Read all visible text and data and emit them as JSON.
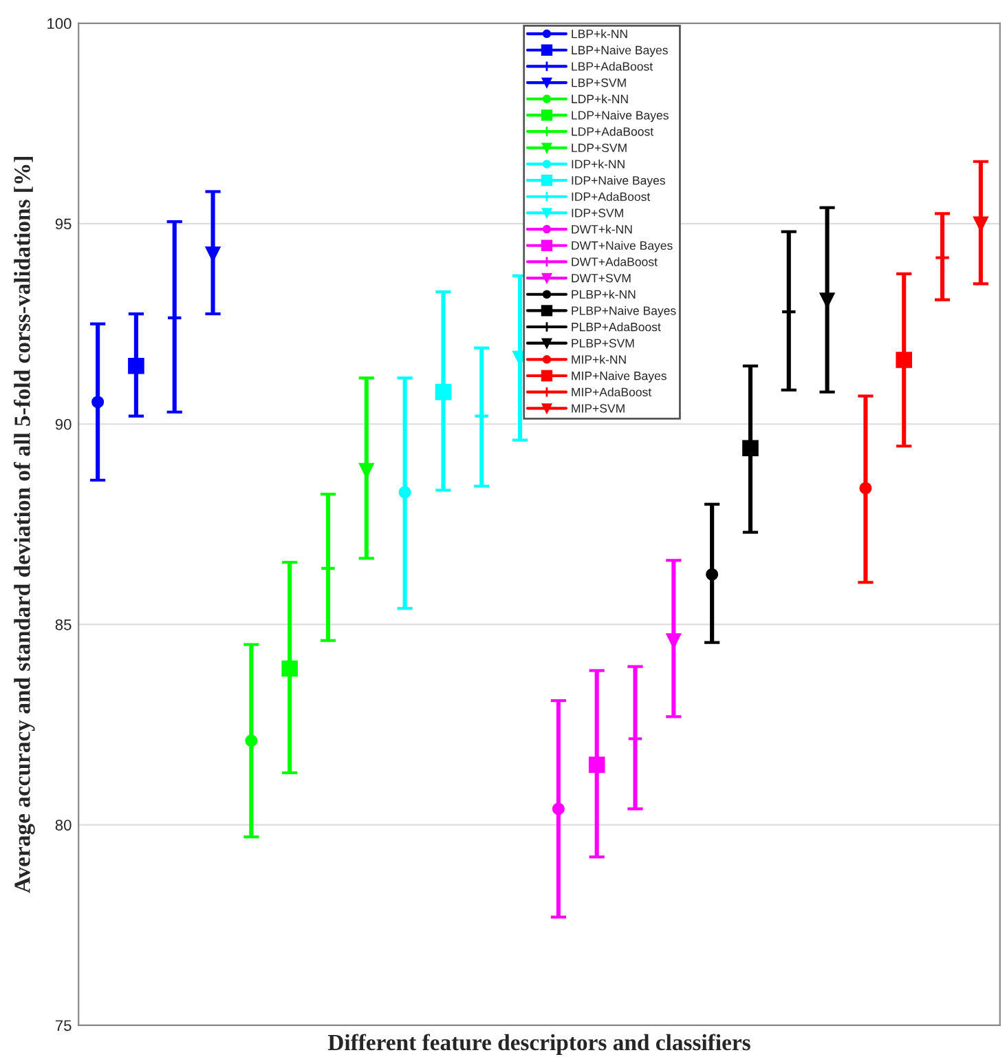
{
  "chart_data": {
    "type": "scatter",
    "xlabel": "Different feature descriptors and classifiers",
    "ylabel": "Average accuracy and standard deviation of all 5-fold corss-validations [%]",
    "categories": [
      null,
      null,
      null,
      null,
      null,
      null,
      null,
      null,
      null,
      null,
      null,
      null,
      null,
      null,
      null,
      null,
      null,
      null,
      null,
      null,
      null,
      null,
      null,
      null
    ],
    "ylim": [
      75,
      100
    ],
    "yticks": [
      75,
      80,
      85,
      90,
      95,
      100
    ],
    "grid": "y",
    "legend": "top",
    "series": [
      {
        "name": "LBP+k-NN",
        "color": "#0000ff",
        "marker": "circle",
        "values": [
          90.55,
          null,
          null,
          null,
          null,
          null,
          null,
          null,
          null,
          null,
          null,
          null,
          null,
          null,
          null,
          null,
          null,
          null,
          null,
          null,
          null,
          null,
          null,
          null
        ],
        "errors": [
          [
            88.6,
            92.5
          ],
          null,
          null,
          null,
          null,
          null,
          null,
          null,
          null,
          null,
          null,
          null,
          null,
          null,
          null,
          null,
          null,
          null,
          null,
          null,
          null,
          null,
          null,
          null
        ]
      },
      {
        "name": "LBP+Naive Bayes",
        "color": "#0000ff",
        "marker": "square",
        "values": [
          null,
          91.45,
          null,
          null,
          null,
          null,
          null,
          null,
          null,
          null,
          null,
          null,
          null,
          null,
          null,
          null,
          null,
          null,
          null,
          null,
          null,
          null,
          null,
          null
        ],
        "errors": [
          null,
          [
            90.2,
            92.75
          ],
          null,
          null,
          null,
          null,
          null,
          null,
          null,
          null,
          null,
          null,
          null,
          null,
          null,
          null,
          null,
          null,
          null,
          null,
          null,
          null,
          null,
          null
        ]
      },
      {
        "name": "LBP+AdaBoost",
        "color": "#0000ff",
        "marker": "cross",
        "values": [
          null,
          null,
          92.65,
          null,
          null,
          null,
          null,
          null,
          null,
          null,
          null,
          null,
          null,
          null,
          null,
          null,
          null,
          null,
          null,
          null,
          null,
          null,
          null,
          null
        ],
        "errors": [
          null,
          null,
          [
            90.3,
            95.05
          ],
          null,
          null,
          null,
          null,
          null,
          null,
          null,
          null,
          null,
          null,
          null,
          null,
          null,
          null,
          null,
          null,
          null,
          null,
          null,
          null,
          null
        ]
      },
      {
        "name": "LBP+SVM",
        "color": "#0000ff",
        "marker": "triangle",
        "values": [
          null,
          null,
          null,
          94.25,
          null,
          null,
          null,
          null,
          null,
          null,
          null,
          null,
          null,
          null,
          null,
          null,
          null,
          null,
          null,
          null,
          null,
          null,
          null,
          null
        ],
        "errors": [
          null,
          null,
          null,
          [
            92.75,
            95.8
          ],
          null,
          null,
          null,
          null,
          null,
          null,
          null,
          null,
          null,
          null,
          null,
          null,
          null,
          null,
          null,
          null,
          null,
          null,
          null,
          null
        ]
      },
      {
        "name": "LDP+k-NN",
        "color": "#00ff00",
        "marker": "circle",
        "values": [
          null,
          null,
          null,
          null,
          82.1,
          null,
          null,
          null,
          null,
          null,
          null,
          null,
          null,
          null,
          null,
          null,
          null,
          null,
          null,
          null,
          null,
          null,
          null,
          null
        ],
        "errors": [
          null,
          null,
          null,
          null,
          [
            79.7,
            84.5
          ],
          null,
          null,
          null,
          null,
          null,
          null,
          null,
          null,
          null,
          null,
          null,
          null,
          null,
          null,
          null,
          null,
          null,
          null,
          null
        ]
      },
      {
        "name": "LDP+Naive Bayes",
        "color": "#00ff00",
        "marker": "square",
        "values": [
          null,
          null,
          null,
          null,
          null,
          83.9,
          null,
          null,
          null,
          null,
          null,
          null,
          null,
          null,
          null,
          null,
          null,
          null,
          null,
          null,
          null,
          null,
          null,
          null
        ],
        "errors": [
          null,
          null,
          null,
          null,
          null,
          [
            81.3,
            86.55
          ],
          null,
          null,
          null,
          null,
          null,
          null,
          null,
          null,
          null,
          null,
          null,
          null,
          null,
          null,
          null,
          null,
          null,
          null
        ]
      },
      {
        "name": "LDP+AdaBoost",
        "color": "#00ff00",
        "marker": "cross",
        "values": [
          null,
          null,
          null,
          null,
          null,
          null,
          86.4,
          null,
          null,
          null,
          null,
          null,
          null,
          null,
          null,
          null,
          null,
          null,
          null,
          null,
          null,
          null,
          null,
          null
        ],
        "errors": [
          null,
          null,
          null,
          null,
          null,
          null,
          [
            84.6,
            88.25
          ],
          null,
          null,
          null,
          null,
          null,
          null,
          null,
          null,
          null,
          null,
          null,
          null,
          null,
          null,
          null,
          null,
          null
        ]
      },
      {
        "name": "LDP+SVM",
        "color": "#00ff00",
        "marker": "triangle",
        "values": [
          null,
          null,
          null,
          null,
          null,
          null,
          null,
          88.85,
          null,
          null,
          null,
          null,
          null,
          null,
          null,
          null,
          null,
          null,
          null,
          null,
          null,
          null,
          null,
          null
        ],
        "errors": [
          null,
          null,
          null,
          null,
          null,
          null,
          null,
          [
            86.65,
            91.15
          ],
          null,
          null,
          null,
          null,
          null,
          null,
          null,
          null,
          null,
          null,
          null,
          null,
          null,
          null,
          null,
          null
        ]
      },
      {
        "name": "IDP+k-NN",
        "color": "#00ffff",
        "marker": "circle",
        "values": [
          null,
          null,
          null,
          null,
          null,
          null,
          null,
          null,
          88.3,
          null,
          null,
          null,
          null,
          null,
          null,
          null,
          null,
          null,
          null,
          null,
          null,
          null,
          null,
          null
        ],
        "errors": [
          null,
          null,
          null,
          null,
          null,
          null,
          null,
          null,
          [
            85.4,
            91.15
          ],
          null,
          null,
          null,
          null,
          null,
          null,
          null,
          null,
          null,
          null,
          null,
          null,
          null,
          null,
          null
        ]
      },
      {
        "name": "IDP+Naive Bayes",
        "color": "#00ffff",
        "marker": "square",
        "values": [
          null,
          null,
          null,
          null,
          null,
          null,
          null,
          null,
          null,
          90.8,
          null,
          null,
          null,
          null,
          null,
          null,
          null,
          null,
          null,
          null,
          null,
          null,
          null,
          null
        ],
        "errors": [
          null,
          null,
          null,
          null,
          null,
          null,
          null,
          null,
          null,
          [
            88.35,
            93.3
          ],
          null,
          null,
          null,
          null,
          null,
          null,
          null,
          null,
          null,
          null,
          null,
          null,
          null,
          null
        ]
      },
      {
        "name": "IDP+AdaBoost",
        "color": "#00ffff",
        "marker": "cross",
        "values": [
          null,
          null,
          null,
          null,
          null,
          null,
          null,
          null,
          null,
          null,
          90.2,
          null,
          null,
          null,
          null,
          null,
          null,
          null,
          null,
          null,
          null,
          null,
          null,
          null
        ],
        "errors": [
          null,
          null,
          null,
          null,
          null,
          null,
          null,
          null,
          null,
          null,
          [
            88.45,
            91.9
          ],
          null,
          null,
          null,
          null,
          null,
          null,
          null,
          null,
          null,
          null,
          null,
          null,
          null
        ]
      },
      {
        "name": "IDP+SVM",
        "color": "#00ffff",
        "marker": "triangle",
        "values": [
          null,
          null,
          null,
          null,
          null,
          null,
          null,
          null,
          null,
          null,
          null,
          91.65,
          null,
          null,
          null,
          null,
          null,
          null,
          null,
          null,
          null,
          null,
          null,
          null
        ],
        "errors": [
          null,
          null,
          null,
          null,
          null,
          null,
          null,
          null,
          null,
          null,
          null,
          [
            89.6,
            93.7
          ],
          null,
          null,
          null,
          null,
          null,
          null,
          null,
          null,
          null,
          null,
          null,
          null
        ]
      },
      {
        "name": "DWT+k-NN",
        "color": "#ff00ff",
        "marker": "circle",
        "values": [
          null,
          null,
          null,
          null,
          null,
          null,
          null,
          null,
          null,
          null,
          null,
          null,
          80.4,
          null,
          null,
          null,
          null,
          null,
          null,
          null,
          null,
          null,
          null,
          null
        ],
        "errors": [
          null,
          null,
          null,
          null,
          null,
          null,
          null,
          null,
          null,
          null,
          null,
          null,
          [
            77.7,
            83.1
          ],
          null,
          null,
          null,
          null,
          null,
          null,
          null,
          null,
          null,
          null,
          null
        ]
      },
      {
        "name": "DWT+Naive Bayes",
        "color": "#ff00ff",
        "marker": "square",
        "values": [
          null,
          null,
          null,
          null,
          null,
          null,
          null,
          null,
          null,
          null,
          null,
          null,
          null,
          81.5,
          null,
          null,
          null,
          null,
          null,
          null,
          null,
          null,
          null,
          null
        ],
        "errors": [
          null,
          null,
          null,
          null,
          null,
          null,
          null,
          null,
          null,
          null,
          null,
          null,
          null,
          [
            79.2,
            83.85
          ],
          null,
          null,
          null,
          null,
          null,
          null,
          null,
          null,
          null,
          null
        ]
      },
      {
        "name": "DWT+AdaBoost",
        "color": "#ff00ff",
        "marker": "cross",
        "values": [
          null,
          null,
          null,
          null,
          null,
          null,
          null,
          null,
          null,
          null,
          null,
          null,
          null,
          null,
          82.15,
          null,
          null,
          null,
          null,
          null,
          null,
          null,
          null,
          null
        ],
        "errors": [
          null,
          null,
          null,
          null,
          null,
          null,
          null,
          null,
          null,
          null,
          null,
          null,
          null,
          null,
          [
            80.4,
            83.95
          ],
          null,
          null,
          null,
          null,
          null,
          null,
          null,
          null,
          null
        ]
      },
      {
        "name": "DWT+SVM",
        "color": "#ff00ff",
        "marker": "triangle",
        "values": [
          null,
          null,
          null,
          null,
          null,
          null,
          null,
          null,
          null,
          null,
          null,
          null,
          null,
          null,
          null,
          84.6,
          null,
          null,
          null,
          null,
          null,
          null,
          null,
          null
        ],
        "errors": [
          null,
          null,
          null,
          null,
          null,
          null,
          null,
          null,
          null,
          null,
          null,
          null,
          null,
          null,
          null,
          [
            82.7,
            86.6
          ],
          null,
          null,
          null,
          null,
          null,
          null,
          null,
          null
        ]
      },
      {
        "name": "PLBP+k-NN",
        "color": "#000000",
        "marker": "circle",
        "values": [
          null,
          null,
          null,
          null,
          null,
          null,
          null,
          null,
          null,
          null,
          null,
          null,
          null,
          null,
          null,
          null,
          86.25,
          null,
          null,
          null,
          null,
          null,
          null,
          null
        ],
        "errors": [
          null,
          null,
          null,
          null,
          null,
          null,
          null,
          null,
          null,
          null,
          null,
          null,
          null,
          null,
          null,
          null,
          [
            84.55,
            88.0
          ],
          null,
          null,
          null,
          null,
          null,
          null,
          null
        ]
      },
      {
        "name": "PLBP+Naive Bayes",
        "color": "#000000",
        "marker": "square",
        "values": [
          null,
          null,
          null,
          null,
          null,
          null,
          null,
          null,
          null,
          null,
          null,
          null,
          null,
          null,
          null,
          null,
          null,
          89.4,
          null,
          null,
          null,
          null,
          null,
          null
        ],
        "errors": [
          null,
          null,
          null,
          null,
          null,
          null,
          null,
          null,
          null,
          null,
          null,
          null,
          null,
          null,
          null,
          null,
          null,
          [
            87.3,
            91.45
          ],
          null,
          null,
          null,
          null,
          null,
          null
        ]
      },
      {
        "name": "PLBP+AdaBoost",
        "color": "#000000",
        "marker": "cross",
        "values": [
          null,
          null,
          null,
          null,
          null,
          null,
          null,
          null,
          null,
          null,
          null,
          null,
          null,
          null,
          null,
          null,
          null,
          null,
          92.8,
          null,
          null,
          null,
          null,
          null
        ],
        "errors": [
          null,
          null,
          null,
          null,
          null,
          null,
          null,
          null,
          null,
          null,
          null,
          null,
          null,
          null,
          null,
          null,
          null,
          null,
          [
            90.85,
            94.8
          ],
          null,
          null,
          null,
          null,
          null
        ]
      },
      {
        "name": "PLBP+SVM",
        "color": "#000000",
        "marker": "triangle",
        "values": [
          null,
          null,
          null,
          null,
          null,
          null,
          null,
          null,
          null,
          null,
          null,
          null,
          null,
          null,
          null,
          null,
          null,
          null,
          null,
          93.1,
          null,
          null,
          null,
          null
        ],
        "errors": [
          null,
          null,
          null,
          null,
          null,
          null,
          null,
          null,
          null,
          null,
          null,
          null,
          null,
          null,
          null,
          null,
          null,
          null,
          null,
          [
            90.8,
            95.4
          ],
          null,
          null,
          null,
          null
        ]
      },
      {
        "name": "MIP+k-NN",
        "color": "#ff0000",
        "marker": "circle",
        "values": [
          null,
          null,
          null,
          null,
          null,
          null,
          null,
          null,
          null,
          null,
          null,
          null,
          null,
          null,
          null,
          null,
          null,
          null,
          null,
          null,
          88.4,
          null,
          null,
          null
        ],
        "errors": [
          null,
          null,
          null,
          null,
          null,
          null,
          null,
          null,
          null,
          null,
          null,
          null,
          null,
          null,
          null,
          null,
          null,
          null,
          null,
          null,
          [
            86.05,
            90.7
          ],
          null,
          null,
          null
        ]
      },
      {
        "name": "MIP+Naive Bayes",
        "color": "#ff0000",
        "marker": "square",
        "values": [
          null,
          null,
          null,
          null,
          null,
          null,
          null,
          null,
          null,
          null,
          null,
          null,
          null,
          null,
          null,
          null,
          null,
          null,
          null,
          null,
          null,
          91.6,
          null,
          null
        ],
        "errors": [
          null,
          null,
          null,
          null,
          null,
          null,
          null,
          null,
          null,
          null,
          null,
          null,
          null,
          null,
          null,
          null,
          null,
          null,
          null,
          null,
          null,
          [
            89.45,
            93.75
          ],
          null,
          null
        ]
      },
      {
        "name": "MIP+AdaBoost",
        "color": "#ff0000",
        "marker": "cross",
        "values": [
          null,
          null,
          null,
          null,
          null,
          null,
          null,
          null,
          null,
          null,
          null,
          null,
          null,
          null,
          null,
          null,
          null,
          null,
          null,
          null,
          null,
          null,
          94.15,
          null
        ],
        "errors": [
          null,
          null,
          null,
          null,
          null,
          null,
          null,
          null,
          null,
          null,
          null,
          null,
          null,
          null,
          null,
          null,
          null,
          null,
          null,
          null,
          null,
          null,
          [
            93.1,
            95.25
          ],
          null
        ]
      },
      {
        "name": "MIP+SVM",
        "color": "#ff0000",
        "marker": "triangle",
        "values": [
          null,
          null,
          null,
          null,
          null,
          null,
          null,
          null,
          null,
          null,
          null,
          null,
          null,
          null,
          null,
          null,
          null,
          null,
          null,
          null,
          null,
          null,
          null,
          95.0
        ],
        "errors": [
          null,
          null,
          null,
          null,
          null,
          null,
          null,
          null,
          null,
          null,
          null,
          null,
          null,
          null,
          null,
          null,
          null,
          null,
          null,
          null,
          null,
          null,
          null,
          [
            93.5,
            96.55
          ]
        ]
      }
    ]
  }
}
